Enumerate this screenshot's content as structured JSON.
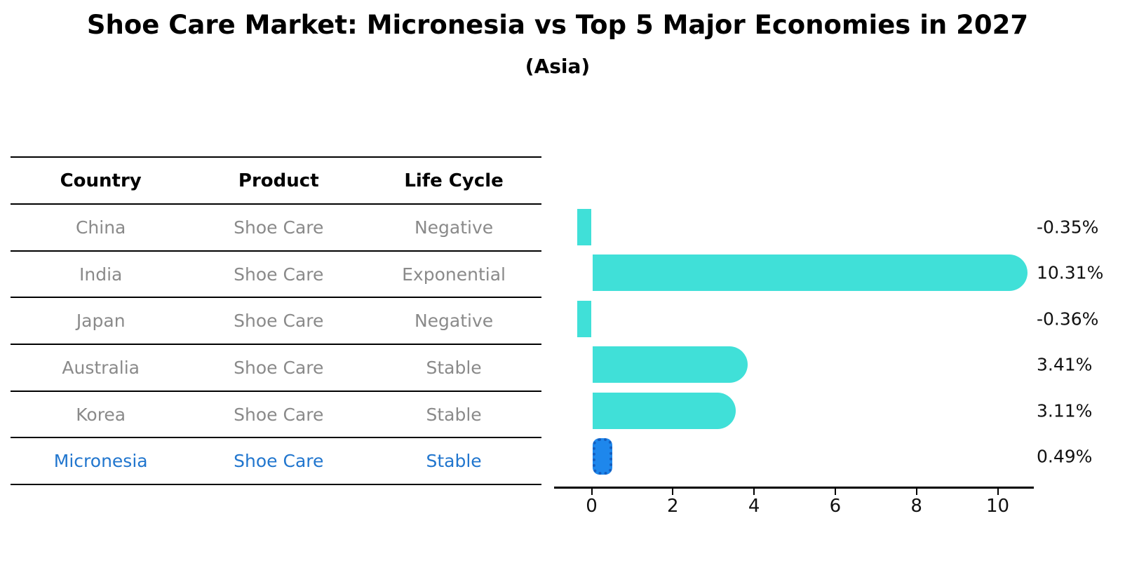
{
  "title": "Shoe Care Market: Micronesia vs Top 5 Major Economies in 2027",
  "subtitle": "(Asia)",
  "table": {
    "headers": [
      "Country",
      "Product",
      "Life Cycle"
    ],
    "rows": [
      {
        "country": "China",
        "product": "Shoe Care",
        "life_cycle": "Negative",
        "highlight": false
      },
      {
        "country": "India",
        "product": "Shoe Care",
        "life_cycle": "Exponential",
        "highlight": false
      },
      {
        "country": "Japan",
        "product": "Shoe Care",
        "life_cycle": "Negative",
        "highlight": false
      },
      {
        "country": "Australia",
        "product": "Shoe Care",
        "life_cycle": "Stable",
        "highlight": false
      },
      {
        "country": "Korea",
        "product": "Shoe Care",
        "life_cycle": "Stable",
        "highlight": false
      },
      {
        "country": "Micronesia",
        "product": "Shoe Care",
        "life_cycle": "Stable",
        "highlight": true
      }
    ]
  },
  "chart_data": {
    "type": "bar",
    "orientation": "horizontal",
    "title": "Shoe Care Market: Micronesia vs Top 5 Major Economies in 2027",
    "subtitle": "(Asia)",
    "categories": [
      "China",
      "India",
      "Japan",
      "Australia",
      "Korea",
      "Micronesia"
    ],
    "values": [
      -0.35,
      10.31,
      -0.36,
      3.41,
      3.11,
      0.49
    ],
    "value_labels": [
      "-0.35%",
      "10.31%",
      "-0.36%",
      "3.41%",
      "3.11%",
      "0.49%"
    ],
    "x_ticks": [
      0,
      2,
      4,
      6,
      8,
      10
    ],
    "xlim": [
      -0.95,
      10.9
    ],
    "grid": false,
    "legend": false,
    "highlight_category": "Micronesia",
    "colors": {
      "bar": "#40E0D8",
      "highlight_fill": "#1E87EC",
      "highlight_border": "#155FC0",
      "highlight_text": "#2176CE",
      "muted_text": "#8a8a8a",
      "label_text": "#111111"
    }
  }
}
